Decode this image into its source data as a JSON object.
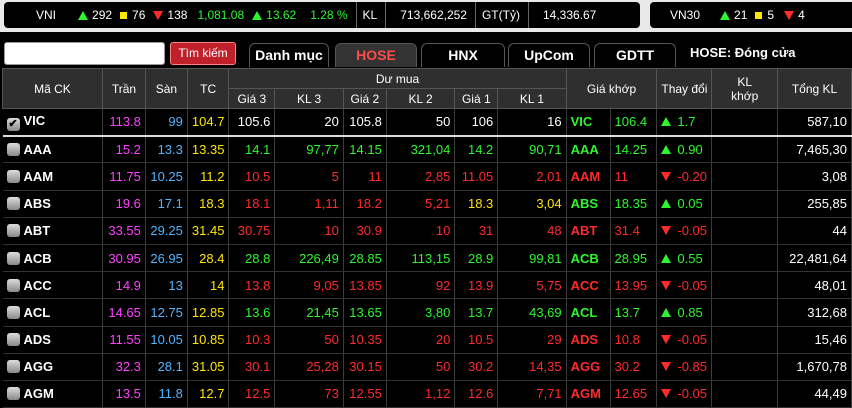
{
  "index_bar": {
    "vni": {
      "name": "VNI",
      "up": "292",
      "ref": "76",
      "down": "138",
      "value": "1,081.08",
      "change": "13.62",
      "pct": "1.28 %",
      "kl_label": "KL",
      "kl": "713,662,252",
      "gt_label": "GT(Tỷ)",
      "gt": "14,336.67"
    },
    "vn30": {
      "name": "VN30",
      "up": "21",
      "ref": "5",
      "down": "4"
    }
  },
  "toolbar": {
    "search_value": "",
    "search_label": "Tìm kiếm",
    "tabs": [
      "Danh mục",
      "HOSE",
      "HNX",
      "UpCom",
      "GDTT"
    ],
    "status": "HOSE:  Đóng cửa"
  },
  "headers": {
    "ma_ck": "Mã CK",
    "tran": "Trần",
    "san": "Sàn",
    "tc": "TC",
    "du_mua": "Dư mua",
    "gia3": "Giá 3",
    "kl3": "KL 3",
    "gia2": "Giá 2",
    "kl2": "KL 2",
    "gia1": "Giá 1",
    "kl1": "KL 1",
    "gia_khop": "Giá khớp",
    "thay_doi": "Thay đổi",
    "kl_khop": "KL khớp",
    "tong_kl": "Tổng KL"
  },
  "colors": {
    "up": "#2ef52e",
    "down": "#ff2b2b",
    "ref": "#ffe600",
    "ceil": "#ff41ff",
    "floor": "#50b4ff",
    "white": "#ffffff"
  },
  "rows": [
    {
      "sym": "VIC",
      "checked": true,
      "tran": "113.8",
      "san": "99",
      "tc": "104.7",
      "g3": "105.6",
      "k3": "20",
      "g2": "105.8",
      "k2": "50",
      "g1": "106",
      "k1": "16",
      "code": "VIC",
      "gk": "106.4",
      "dir": "up",
      "chg": "1.7",
      "klk": "",
      "tong": "587,10",
      "c3": "w",
      "c2": "w",
      "c1": "w",
      "ck": "g"
    },
    {
      "sym": "AAA",
      "checked": false,
      "tran": "15.2",
      "san": "13.3",
      "tc": "13.35",
      "g3": "14.1",
      "k3": "97,77",
      "g2": "14.15",
      "k2": "321,04",
      "g1": "14.2",
      "k1": "90,71",
      "code": "AAA",
      "gk": "14.25",
      "dir": "up",
      "chg": "0.90",
      "klk": "",
      "tong": "7,465,30",
      "c3": "g",
      "c2": "g",
      "c1": "g",
      "ck": "g"
    },
    {
      "sym": "AAM",
      "checked": false,
      "tran": "11.75",
      "san": "10.25",
      "tc": "11.2",
      "g3": "10.5",
      "k3": "5",
      "g2": "11",
      "k2": "2,85",
      "g1": "11.05",
      "k1": "2,01",
      "code": "AAM",
      "gk": "11",
      "dir": "down",
      "chg": "-0.20",
      "klk": "",
      "tong": "3,08",
      "c3": "r",
      "c2": "r",
      "c1": "r",
      "ck": "r"
    },
    {
      "sym": "ABS",
      "checked": false,
      "tran": "19.6",
      "san": "17.1",
      "tc": "18.3",
      "g3": "18.1",
      "k3": "1,11",
      "g2": "18.2",
      "k2": "5,21",
      "g1": "18.3",
      "k1": "3,04",
      "code": "ABS",
      "gk": "18.35",
      "dir": "up",
      "chg": "0.05",
      "klk": "",
      "tong": "255,85",
      "c3": "r",
      "c2": "r",
      "c1": "y",
      "ck": "g"
    },
    {
      "sym": "ABT",
      "checked": false,
      "tran": "33.55",
      "san": "29.25",
      "tc": "31.45",
      "g3": "30.75",
      "k3": "10",
      "g2": "30.9",
      "k2": "10",
      "g1": "31",
      "k1": "48",
      "code": "ABT",
      "gk": "31.4",
      "dir": "down",
      "chg": "-0.05",
      "klk": "",
      "tong": "44",
      "c3": "r",
      "c2": "r",
      "c1": "r",
      "ck": "r"
    },
    {
      "sym": "ACB",
      "checked": false,
      "tran": "30.95",
      "san": "26.95",
      "tc": "28.4",
      "g3": "28.8",
      "k3": "226,49",
      "g2": "28.85",
      "k2": "113,15",
      "g1": "28.9",
      "k1": "99,81",
      "code": "ACB",
      "gk": "28.95",
      "dir": "up",
      "chg": "0.55",
      "klk": "",
      "tong": "22,481,64",
      "c3": "g",
      "c2": "g",
      "c1": "g",
      "ck": "g"
    },
    {
      "sym": "ACC",
      "checked": false,
      "tran": "14.9",
      "san": "13",
      "tc": "14",
      "g3": "13.8",
      "k3": "9,05",
      "g2": "13.85",
      "k2": "92",
      "g1": "13.9",
      "k1": "5,75",
      "code": "ACC",
      "gk": "13.95",
      "dir": "down",
      "chg": "-0.05",
      "klk": "",
      "tong": "48,01",
      "c3": "r",
      "c2": "r",
      "c1": "r",
      "ck": "r"
    },
    {
      "sym": "ACL",
      "checked": false,
      "tran": "14.65",
      "san": "12.75",
      "tc": "12.85",
      "g3": "13.6",
      "k3": "21,45",
      "g2": "13.65",
      "k2": "3,80",
      "g1": "13.7",
      "k1": "43,69",
      "code": "ACL",
      "gk": "13.7",
      "dir": "up",
      "chg": "0.85",
      "klk": "",
      "tong": "312,68",
      "c3": "g",
      "c2": "g",
      "c1": "g",
      "ck": "g"
    },
    {
      "sym": "ADS",
      "checked": false,
      "tran": "11.55",
      "san": "10.05",
      "tc": "10.85",
      "g3": "10.3",
      "k3": "50",
      "g2": "10.35",
      "k2": "20",
      "g1": "10.5",
      "k1": "29",
      "code": "ADS",
      "gk": "10.8",
      "dir": "down",
      "chg": "-0.05",
      "klk": "",
      "tong": "15,46",
      "c3": "r",
      "c2": "r",
      "c1": "r",
      "ck": "r"
    },
    {
      "sym": "AGG",
      "checked": false,
      "tran": "32.3",
      "san": "28.1",
      "tc": "31.05",
      "g3": "30.1",
      "k3": "25,28",
      "g2": "30.15",
      "k2": "50",
      "g1": "30.2",
      "k1": "14,35",
      "code": "AGG",
      "gk": "30.2",
      "dir": "down",
      "chg": "-0.85",
      "klk": "",
      "tong": "1,670,78",
      "c3": "r",
      "c2": "r",
      "c1": "r",
      "ck": "r"
    },
    {
      "sym": "AGM",
      "checked": false,
      "tran": "13.5",
      "san": "11.8",
      "tc": "12.7",
      "g3": "12.5",
      "k3": "73",
      "g2": "12.55",
      "k2": "1,12",
      "g1": "12.6",
      "k1": "7,71",
      "code": "AGM",
      "gk": "12.65",
      "dir": "down",
      "chg": "-0.05",
      "klk": "",
      "tong": "44,49",
      "c3": "r",
      "c2": "r",
      "c1": "r",
      "ck": "r"
    }
  ]
}
